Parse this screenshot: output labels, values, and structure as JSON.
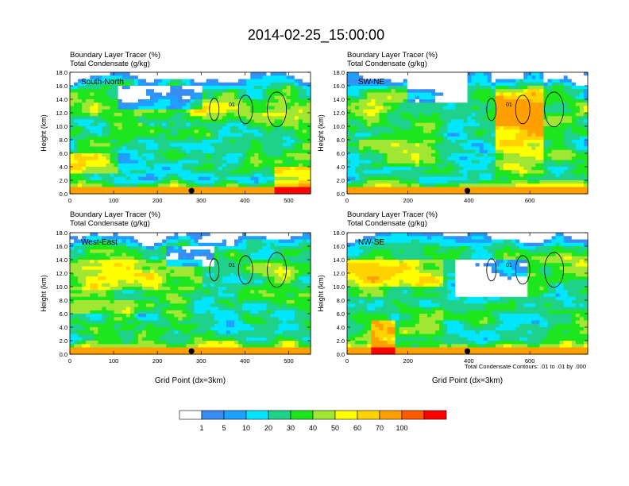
{
  "main_title": "2014-02-25_15:00:00",
  "chart_data": [
    {
      "type": "heatmap",
      "panel_label": "South-North",
      "title_line1": "Boundary Layer Tracer    (%)",
      "title_line2": "Total Condensate    (g/kg)",
      "ylabel": "Height (km)",
      "xlabel": "",
      "xlim": [
        0,
        550
      ],
      "ylim": [
        0,
        18
      ],
      "xticks": [
        0,
        100,
        200,
        300,
        400,
        500
      ],
      "yticks": [
        0,
        2,
        4,
        6,
        8,
        10,
        12,
        14,
        16,
        18
      ],
      "ytick_labels": [
        "0.0",
        "2.0",
        "4.0",
        "6.0",
        "8.0",
        "10.0",
        "12.0",
        "14.0",
        "16.0",
        "18.0"
      ],
      "marker_x": 278,
      "contour_label": "01"
    },
    {
      "type": "heatmap",
      "panel_label": "SW-NE",
      "title_line1": "Boundary Layer Tracer    (%)",
      "title_line2": "Total Condensate    (g/kg)",
      "ylabel": "Height (km)",
      "xlabel": "",
      "xlim": [
        0,
        790
      ],
      "ylim": [
        0,
        18
      ],
      "xticks": [
        0,
        200,
        400,
        600
      ],
      "yticks": [
        0,
        2,
        4,
        6,
        8,
        10,
        12,
        14,
        16,
        18
      ],
      "ytick_labels": [
        "0.0",
        "2.0",
        "4.0",
        "6.0",
        "8.0",
        "10.0",
        "12.0",
        "14.0",
        "16.0",
        "18.0"
      ],
      "marker_x": 395,
      "contour_label": "01"
    },
    {
      "type": "heatmap",
      "panel_label": "West-East",
      "title_line1": "Boundary Layer Tracer    (%)",
      "title_line2": "Total Condensate    (g/kg)",
      "ylabel": "Height (km)",
      "xlabel": "Grid Point (dx=3km)",
      "xlim": [
        0,
        550
      ],
      "ylim": [
        0,
        18
      ],
      "xticks": [
        0,
        100,
        200,
        300,
        400,
        500
      ],
      "yticks": [
        0,
        2,
        4,
        6,
        8,
        10,
        12,
        14,
        16,
        18
      ],
      "ytick_labels": [
        "0.0",
        "2.0",
        "4.0",
        "6.0",
        "8.0",
        "10.0",
        "12.0",
        "14.0",
        "16.0",
        "18.0"
      ],
      "marker_x": 278,
      "contour_label": "01"
    },
    {
      "type": "heatmap",
      "panel_label": "NW-SE",
      "title_line1": "Boundary Layer Tracer    (%)",
      "title_line2": "Total Condensate    (g/kg)",
      "ylabel": "Height (km)",
      "xlabel": "Grid Point (dx=3km)",
      "xlim": [
        0,
        790
      ],
      "ylim": [
        0,
        18
      ],
      "xticks": [
        0,
        200,
        400,
        600
      ],
      "yticks": [
        0,
        2,
        4,
        6,
        8,
        10,
        12,
        14,
        16,
        18
      ],
      "ytick_labels": [
        "0.0",
        "2.0",
        "4.0",
        "6.0",
        "8.0",
        "10.0",
        "12.0",
        "14.0",
        "16.0",
        "18.0"
      ],
      "marker_x": 395,
      "contour_label": "01",
      "contour_note": "Total Condensate Contours: .01 to .01 by .000"
    }
  ],
  "colorbar": {
    "colors": [
      "#ffffff",
      "#3a8cf0",
      "#1ea0ff",
      "#00e6ff",
      "#1ed28c",
      "#1ee61e",
      "#a0e632",
      "#ffff00",
      "#ffd200",
      "#ffa000",
      "#ff5a00",
      "#ff0000"
    ],
    "labels": [
      "1",
      "5",
      "10",
      "20",
      "30",
      "40",
      "50",
      "60",
      "70",
      "100"
    ]
  }
}
